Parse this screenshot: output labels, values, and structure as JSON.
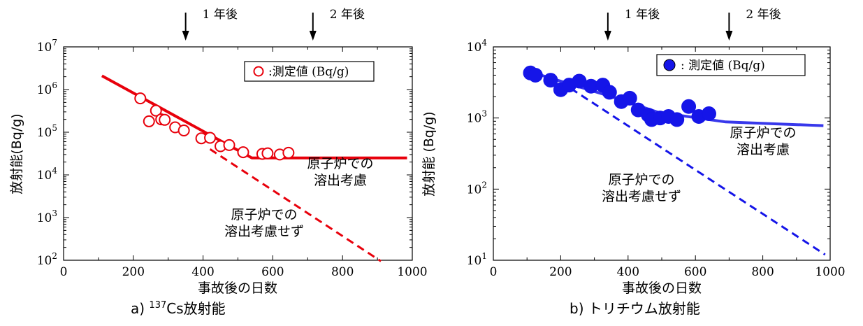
{
  "chart_data": [
    {
      "type": "scatter",
      "caption_prefix": "a)",
      "caption_sup": "137",
      "caption_main": "Cs放射能",
      "xlabel": "事故後の日数",
      "ylabel": "放射能(Bq/g)",
      "xlim": [
        0,
        1000
      ],
      "ylim_log10": [
        2,
        7
      ],
      "x_ticks": [
        "0",
        "200",
        "400",
        "600",
        "800",
        "1000"
      ],
      "y_tick_exponents": [
        "2",
        "3",
        "4",
        "5",
        "6",
        "7"
      ],
      "y_tick_base": "10",
      "color": "#e8000b",
      "legend_label": ":測定値 (Bq/g)",
      "legend_marker": "open-circle",
      "arrows": [
        {
          "x": 350,
          "label": "1 年後"
        },
        {
          "x": 715,
          "label": "2 年後"
        }
      ],
      "points": [
        [
          220,
          620000
        ],
        [
          245,
          180000
        ],
        [
          265,
          320000
        ],
        [
          280,
          200000
        ],
        [
          290,
          195000
        ],
        [
          320,
          130000
        ],
        [
          345,
          110000
        ],
        [
          395,
          72000
        ],
        [
          420,
          74000
        ],
        [
          450,
          47000
        ],
        [
          475,
          50000
        ],
        [
          515,
          34000
        ],
        [
          570,
          31000
        ],
        [
          585,
          32000
        ],
        [
          620,
          30000
        ],
        [
          645,
          33000
        ]
      ],
      "fit_with_leaching": [
        [
          110,
          2100000
        ],
        [
          540,
          25000
        ],
        [
          985,
          25000
        ]
      ],
      "fit_without_leaching": [
        [
          420,
          40000
        ],
        [
          910,
          95
        ]
      ],
      "label_with_leaching": [
        "原子炉での",
        "溶出考慮"
      ],
      "label_without_leaching": [
        "原子炉での",
        "溶出考慮せず"
      ]
    },
    {
      "type": "scatter",
      "caption_prefix": "b)",
      "caption_sup": "",
      "caption_main": "トリチウム放射能",
      "xlabel": "事故後の日数",
      "ylabel": "放射能 (Bq/g)",
      "xlim": [
        0,
        1000
      ],
      "ylim_log10": [
        1,
        4
      ],
      "x_ticks": [
        "0",
        "200",
        "400",
        "600",
        "800",
        "1000"
      ],
      "y_tick_exponents": [
        "1",
        "2",
        "3",
        "4"
      ],
      "y_tick_base": "10",
      "color": "#1515e8",
      "legend_label": ": 測定値 (Bq/g)",
      "legend_marker": "filled-circle",
      "arrows": [
        {
          "x": 340,
          "label": "1 年後"
        },
        {
          "x": 700,
          "label": "2 年後"
        }
      ],
      "points": [
        [
          110,
          4300
        ],
        [
          125,
          4000
        ],
        [
          170,
          3400
        ],
        [
          200,
          2500
        ],
        [
          225,
          2900
        ],
        [
          255,
          3300
        ],
        [
          290,
          2800
        ],
        [
          325,
          2900
        ],
        [
          345,
          2300
        ],
        [
          380,
          1700
        ],
        [
          405,
          1900
        ],
        [
          430,
          1300
        ],
        [
          460,
          1100
        ],
        [
          470,
          950
        ],
        [
          495,
          1000
        ],
        [
          520,
          1050
        ],
        [
          545,
          950
        ],
        [
          580,
          1450
        ],
        [
          610,
          1050
        ],
        [
          640,
          1150
        ]
      ],
      "fit_with_leaching": [
        [
          120,
          4300
        ],
        [
          350,
          2000
        ],
        [
          490,
          1200
        ],
        [
          690,
          880
        ],
        [
          980,
          780
        ]
      ],
      "fit_without_leaching": [
        [
          230,
          2600
        ],
        [
          985,
          12
        ]
      ],
      "label_with_leaching": [
        "原子炉での",
        "溶出考慮"
      ],
      "label_without_leaching": [
        "原子炉での",
        "溶出考慮せず"
      ]
    }
  ]
}
